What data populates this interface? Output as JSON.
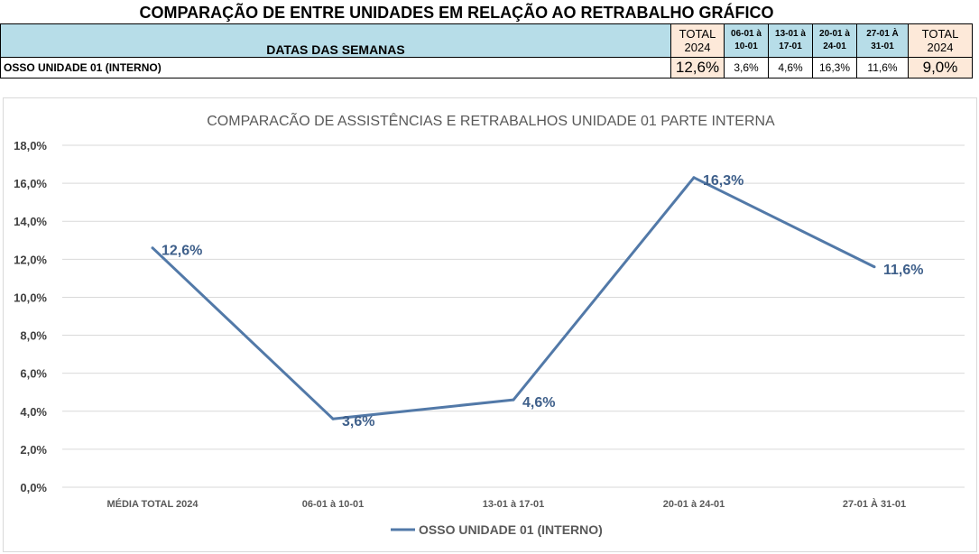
{
  "header": {
    "title": "COMPARAÇÃO DE ENTRE UNIDADES EM RELAÇÃO AO RETRABALHO GRÁFICO",
    "dates_label": "DATAS DAS SEMANAS",
    "columns": [
      {
        "line1": "TOTAL",
        "line2": "2024"
      },
      {
        "line1": "06-01 à",
        "line2": "10-01"
      },
      {
        "line1": "13-01 à",
        "line2": "17-01"
      },
      {
        "line1": "20-01 à",
        "line2": "24-01"
      },
      {
        "line1": "27-01 À",
        "line2": "31-01"
      },
      {
        "line1": "TOTAL",
        "line2": "2024"
      }
    ],
    "row": {
      "label": "OSSO UNIDADE 01 (INTERNO)",
      "values": [
        "12,6%",
        "3,6%",
        "4,6%",
        "16,3%",
        "11,6%",
        "9,0%"
      ]
    }
  },
  "chart_data": {
    "type": "line",
    "title": "COMPARACÃO DE ASSISTÊNCIAS E RETRABALHOS UNIDADE 01 PARTE INTERNA",
    "categories": [
      "MÉDIA TOTAL 2024",
      "06-01 à 10-01",
      "13-01 à 17-01",
      "20-01 à 24-01",
      "27-01 À 31-01"
    ],
    "series": [
      {
        "name": "OSSO UNIDADE 01 (INTERNO)",
        "values": [
          12.6,
          3.6,
          4.6,
          16.3,
          11.6
        ],
        "labels": [
          "12,6%",
          "3,6%",
          "4,6%",
          "16,3%",
          "11,6%"
        ]
      }
    ],
    "ylim": [
      0,
      18
    ],
    "yticks": [
      "0,0%",
      "2,0%",
      "4,0%",
      "6,0%",
      "8,0%",
      "10,0%",
      "12,0%",
      "14,0%",
      "16,0%",
      "18,0%"
    ],
    "grid": true,
    "legend": "bottom",
    "colors": {
      "line": "#5279a8",
      "label": "#3e5f8a",
      "grid": "#d9d9d9",
      "title": "#595959"
    }
  }
}
